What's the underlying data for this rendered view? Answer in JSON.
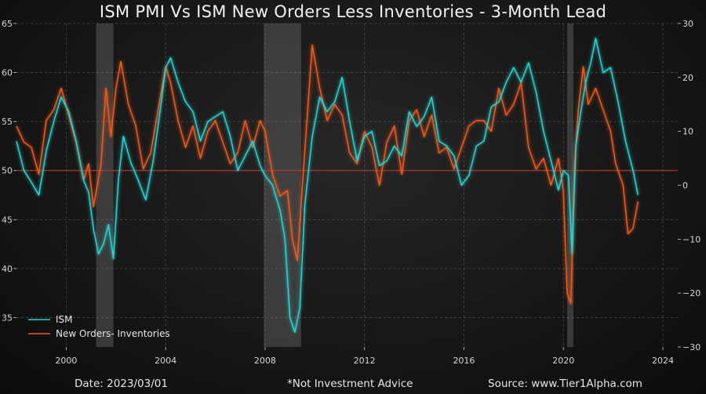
{
  "chart_data": {
    "type": "line",
    "title": "ISM PMI Vs ISM New Orders Less Inventories - 3-Month Lead",
    "x_range": [
      1998.0,
      2024.6
    ],
    "x_ticks": [
      2000,
      2004,
      2008,
      2012,
      2016,
      2020,
      2024
    ],
    "x_tick_labels": [
      "2000",
      "2004",
      "2008",
      "2012",
      "2016",
      "2020",
      "2024"
    ],
    "y_left_range": [
      32,
      65
    ],
    "y_left_ticks": [
      35,
      40,
      45,
      50,
      55,
      60,
      65
    ],
    "y_right_range": [
      -30,
      30
    ],
    "y_right_ticks": [
      -30,
      -20,
      -10,
      0,
      10,
      20,
      30
    ],
    "y_right_tick_labels": [
      "−30",
      "−20",
      "−10",
      "0",
      "10",
      "20",
      "30"
    ],
    "reference_line": {
      "axis": "left",
      "value": 50,
      "color": "#b03a2e"
    },
    "recession_shading": [
      [
        2001.2,
        2001.9
      ],
      [
        2007.95,
        2009.45
      ],
      [
        2020.15,
        2020.4
      ]
    ],
    "series": [
      {
        "name": "ISM",
        "axis": "left",
        "color": "#2ad4d4",
        "x": [
          1998.0,
          1998.3,
          1998.6,
          1998.9,
          1999.2,
          1999.5,
          1999.8,
          2000.1,
          2000.4,
          2000.7,
          2000.9,
          2001.1,
          2001.3,
          2001.5,
          2001.7,
          2001.9,
          2002.1,
          2002.3,
          2002.6,
          2002.9,
          2003.2,
          2003.5,
          2003.8,
          2004.0,
          2004.2,
          2004.5,
          2004.8,
          2005.1,
          2005.4,
          2005.7,
          2006.0,
          2006.3,
          2006.6,
          2006.9,
          2007.2,
          2007.5,
          2007.8,
          2008.0,
          2008.3,
          2008.6,
          2008.8,
          2009.0,
          2009.2,
          2009.4,
          2009.6,
          2009.9,
          2010.2,
          2010.5,
          2010.8,
          2011.1,
          2011.4,
          2011.7,
          2012.0,
          2012.3,
          2012.6,
          2012.9,
          2013.2,
          2013.5,
          2013.8,
          2014.1,
          2014.4,
          2014.7,
          2015.0,
          2015.3,
          2015.6,
          2015.9,
          2016.2,
          2016.5,
          2016.8,
          2017.1,
          2017.4,
          2017.7,
          2018.0,
          2018.3,
          2018.6,
          2018.9,
          2019.2,
          2019.5,
          2019.8,
          2020.0,
          2020.2,
          2020.35,
          2020.5,
          2020.7,
          2020.9,
          2021.1,
          2021.3,
          2021.6,
          2021.9,
          2022.2,
          2022.5,
          2022.8,
          2023.0
        ],
        "y": [
          53,
          50,
          48.8,
          47.5,
          52,
          55,
          57.5,
          56,
          53,
          49,
          47.8,
          44,
          41.5,
          42.5,
          44.5,
          41,
          49,
          53.5,
          50.8,
          49,
          47,
          51,
          56.5,
          60.5,
          61.5,
          59,
          57,
          56,
          53,
          55,
          55.5,
          56,
          53.5,
          50,
          51.5,
          53,
          50.5,
          49.5,
          48.5,
          46,
          43,
          35,
          33.5,
          36,
          46.5,
          53.5,
          57.5,
          56,
          57,
          59.5,
          55,
          51,
          53.5,
          54,
          50.5,
          51,
          52.5,
          51.5,
          56,
          54.5,
          55.5,
          57.5,
          53,
          52.5,
          51.5,
          48.5,
          49.5,
          52.5,
          53,
          56.5,
          57,
          59,
          60.5,
          59,
          61,
          58,
          54,
          51,
          48,
          50,
          49.5,
          41.5,
          52.5,
          56,
          59,
          61,
          63.5,
          60,
          60.5,
          57,
          53,
          50,
          47.5
        ]
      },
      {
        "name": "New Orders- Inventories",
        "axis": "right",
        "color": "#f05a1e",
        "x": [
          1998.0,
          1998.3,
          1998.6,
          1998.9,
          1999.2,
          1999.5,
          1999.8,
          2000.1,
          2000.4,
          2000.7,
          2000.9,
          2001.1,
          2001.4,
          2001.6,
          2001.8,
          2002.0,
          2002.2,
          2002.5,
          2002.8,
          2003.1,
          2003.4,
          2003.7,
          2004.0,
          2004.2,
          2004.5,
          2004.8,
          2005.1,
          2005.4,
          2005.7,
          2006.0,
          2006.3,
          2006.6,
          2006.9,
          2007.2,
          2007.5,
          2007.8,
          2008.0,
          2008.3,
          2008.6,
          2008.9,
          2009.1,
          2009.3,
          2009.5,
          2009.7,
          2009.9,
          2010.2,
          2010.5,
          2010.8,
          2011.1,
          2011.4,
          2011.7,
          2012.0,
          2012.3,
          2012.6,
          2012.9,
          2013.2,
          2013.5,
          2013.8,
          2014.1,
          2014.4,
          2014.7,
          2015.0,
          2015.3,
          2015.6,
          2015.9,
          2016.2,
          2016.5,
          2016.8,
          2017.1,
          2017.4,
          2017.7,
          2018.0,
          2018.3,
          2018.6,
          2018.9,
          2019.2,
          2019.5,
          2019.8,
          2020.0,
          2020.15,
          2020.3,
          2020.45,
          2020.6,
          2020.8,
          2021.0,
          2021.3,
          2021.6,
          2021.9,
          2022.1,
          2022.4,
          2022.6,
          2022.8,
          2023.0
        ],
        "y": [
          11,
          8,
          7,
          2,
          12,
          14,
          18,
          13,
          8,
          1,
          4,
          -4,
          4,
          18,
          9,
          18,
          23,
          15,
          11,
          3,
          6,
          14,
          22,
          19,
          12,
          7,
          11,
          5,
          10,
          12,
          8,
          4,
          6,
          12,
          7,
          12,
          10,
          2,
          -2,
          -1,
          -10,
          -14,
          0,
          13,
          26,
          18,
          12,
          15,
          13,
          6,
          4,
          10,
          7,
          0,
          8,
          11,
          2,
          12,
          14,
          9,
          13,
          6,
          7,
          3,
          7,
          11,
          12,
          12,
          10,
          18,
          13,
          15,
          19,
          7,
          3,
          5,
          0,
          5,
          -1,
          -20,
          -22,
          4,
          14,
          22,
          15,
          18,
          14,
          10,
          4,
          0,
          -9,
          -8,
          -3
        ]
      }
    ],
    "legend": [
      "ISM",
      "New Orders- Inventories"
    ],
    "legend_position": "bottom-left"
  },
  "footer": {
    "date": "Date: 2023/03/01",
    "note": "*Not Investment Advice",
    "source": "Source: www.Tier1Alpha.com"
  }
}
